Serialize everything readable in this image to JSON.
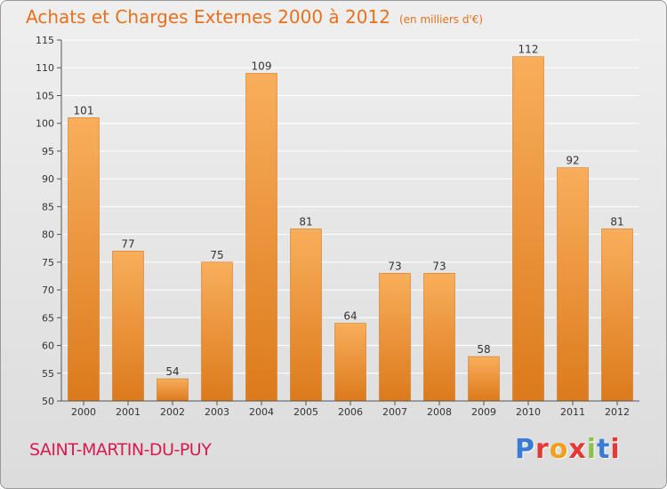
{
  "header": {
    "title": "Achats et Charges Externes 2000 à 2012",
    "unit": "(en milliers d'€)"
  },
  "commune": "SAINT-MARTIN-DU-PUY",
  "logo": {
    "text": "Proxiti",
    "colors": [
      "#3a7bd5",
      "#e53935",
      "#f0a01c",
      "#e53935",
      "#8bc34a",
      "#3a7bd5",
      "#e53935"
    ]
  },
  "colors": {
    "bar_light": "#f9ae5b",
    "bar_dark": "#dc7a1c",
    "title": "#e8701a",
    "commune": "#d91a4f"
  },
  "chart_data": {
    "type": "bar",
    "title": "Achats et Charges Externes 2000 à 2012",
    "subtitle": "(en milliers d'€)",
    "categories": [
      "2000",
      "2001",
      "2002",
      "2003",
      "2004",
      "2005",
      "2006",
      "2007",
      "2008",
      "2009",
      "2010",
      "2011",
      "2012"
    ],
    "values": [
      101,
      77,
      54,
      75,
      109,
      81,
      64,
      73,
      73,
      58,
      112,
      92,
      81
    ],
    "ylim": [
      50,
      115
    ],
    "yticks": [
      50,
      55,
      60,
      65,
      70,
      75,
      80,
      85,
      90,
      95,
      100,
      105,
      110,
      115
    ],
    "grid": true,
    "data_labels": true
  }
}
